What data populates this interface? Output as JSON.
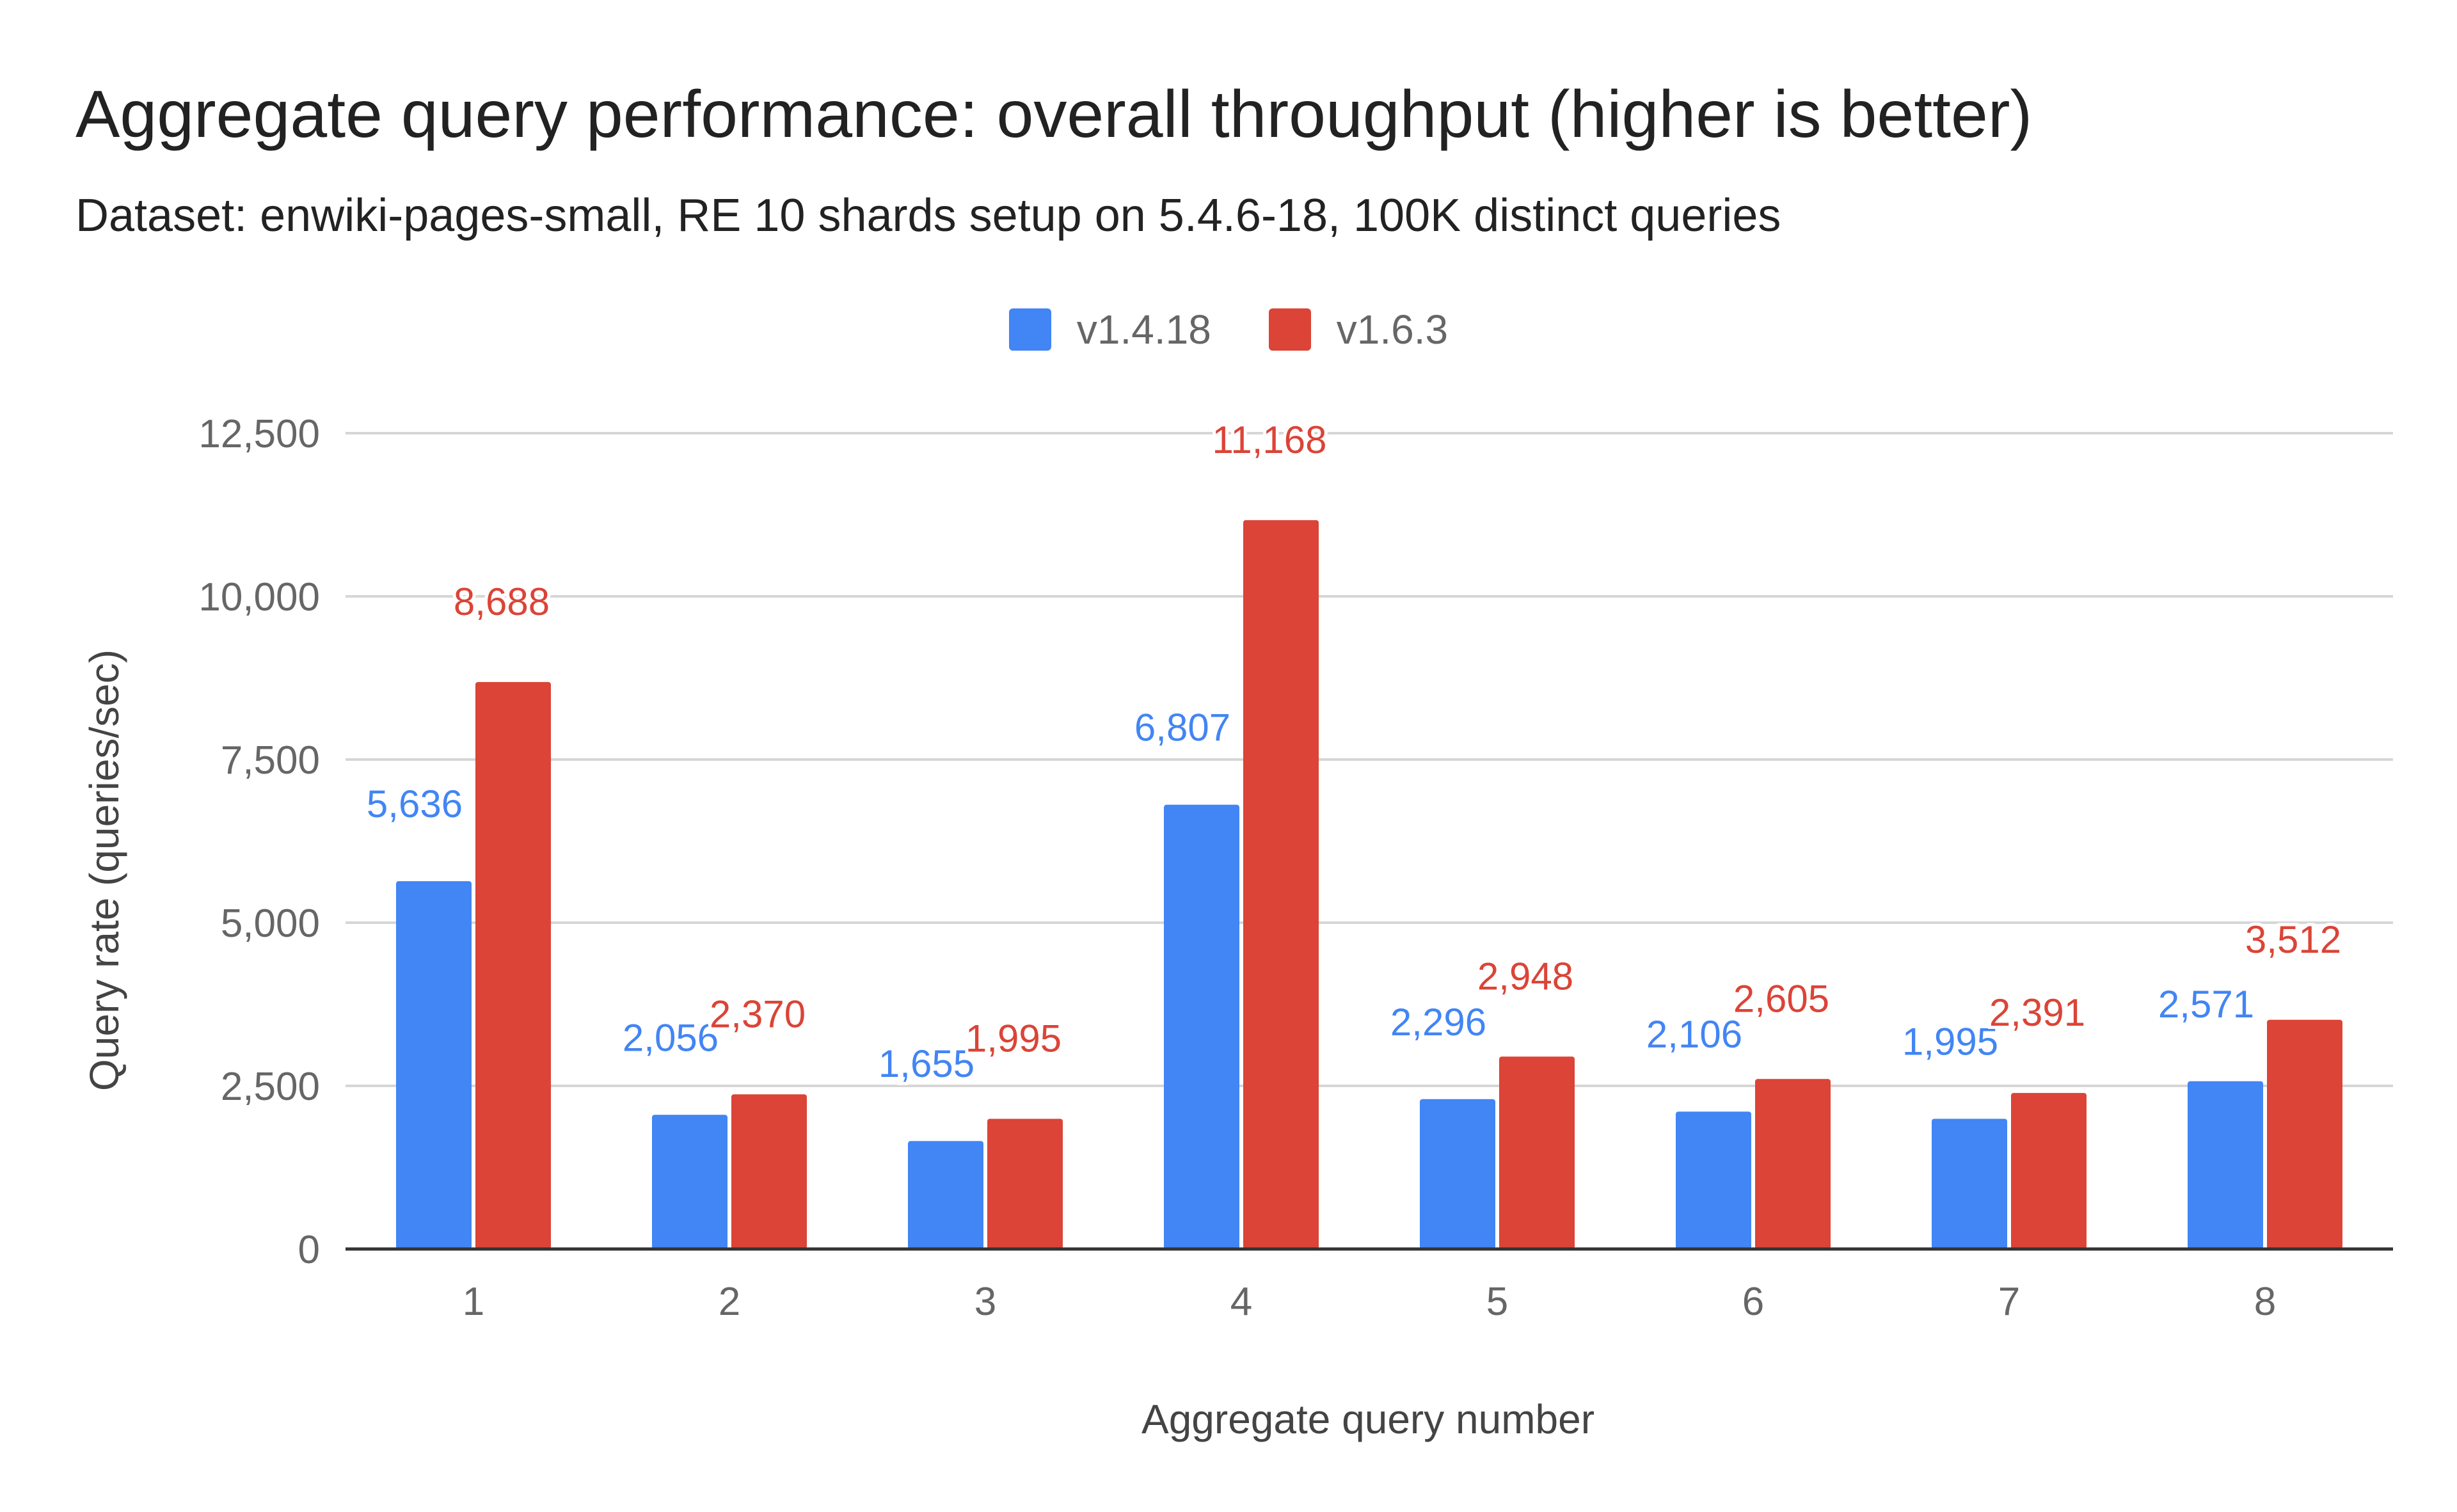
{
  "chart_data": {
    "type": "bar",
    "title": "Aggregate query performance: overall throughput (higher is better)",
    "subtitle": "Dataset: enwiki-pages-small, RE 10 shards setup on 5.4.6-18, 100K distinct queries",
    "xlabel": "Aggregate query number",
    "ylabel": "Query rate (queries/sec)",
    "categories": [
      "1",
      "2",
      "3",
      "4",
      "5",
      "6",
      "7",
      "8"
    ],
    "series": [
      {
        "name": "v1.4.18",
        "color": "#4285f4",
        "values": [
          5636,
          2056,
          1655,
          6807,
          2296,
          2106,
          1995,
          2571
        ],
        "labels": [
          "5,636",
          "2,056",
          "1,655",
          "6,807",
          "2,296",
          "2,106",
          "1,995",
          "2,571"
        ]
      },
      {
        "name": "v1.6.3",
        "color": "#db4437",
        "values": [
          8688,
          2370,
          1995,
          11168,
          2948,
          2605,
          2391,
          3512
        ],
        "labels": [
          "8,688",
          "2,370",
          "1,995",
          "11,168",
          "2,948",
          "2,605",
          "2,391",
          "3,512"
        ]
      }
    ],
    "ylim": [
      0,
      12500
    ],
    "yticks": [
      0,
      2500,
      5000,
      7500,
      10000,
      12500
    ],
    "ytick_labels": [
      "0",
      "2,500",
      "5,000",
      "7,500",
      "10,000",
      "12,500"
    ],
    "grid": true,
    "legend_position": "top-center"
  }
}
